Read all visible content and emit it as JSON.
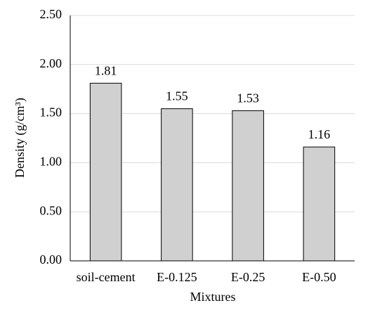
{
  "chart_data": {
    "type": "bar",
    "x_label": "Mixtures",
    "y_label": "Density (g/cm³)",
    "categories": [
      "soil-cement",
      "E-0.125",
      "E-0.25",
      "E-0.50"
    ],
    "values": [
      1.81,
      1.55,
      1.53,
      1.16
    ],
    "color": "#d0d0d0",
    "ylim": [
      0,
      2.5
    ],
    "yticks": [
      {
        "value": 0,
        "label": "0.00"
      },
      {
        "value": 0.5,
        "label": "0.50"
      },
      {
        "value": 1,
        "label": "1.00"
      },
      {
        "value": 1.5,
        "label": "1.50"
      },
      {
        "value": 2,
        "label": "2.00"
      },
      {
        "value": 2.5,
        "label": "2.50"
      }
    ],
    "grid": true
  }
}
